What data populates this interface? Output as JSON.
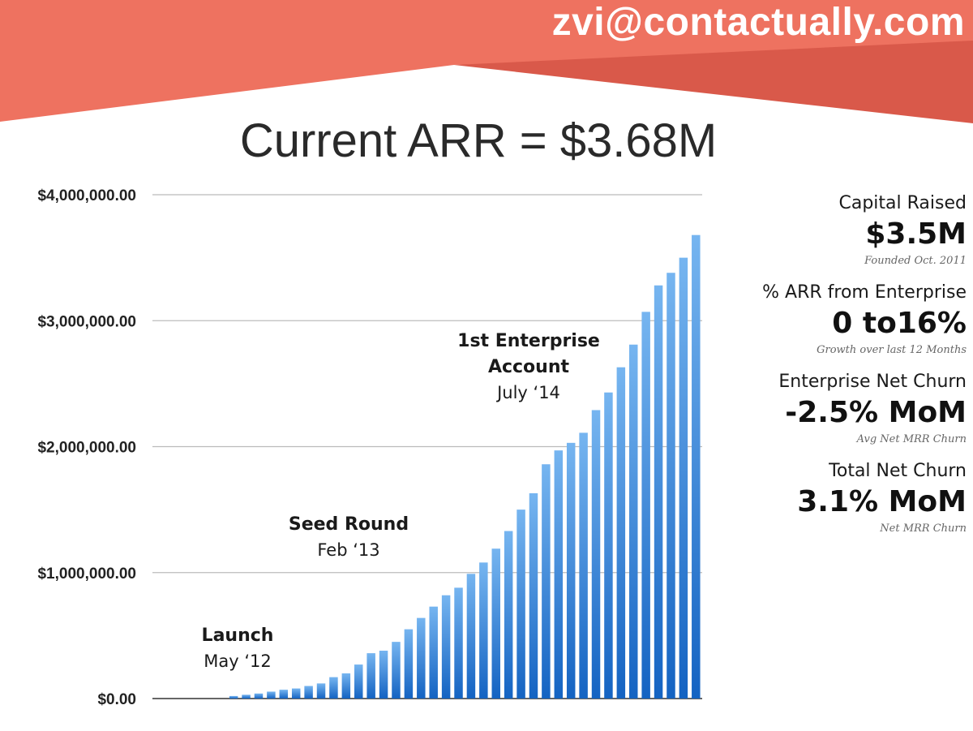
{
  "header": {
    "email": "zvi@contactually.com",
    "title": "Current ARR = $3.68M",
    "colors": {
      "banner_light": "#ee7260",
      "banner_dark": "#d9594a",
      "bar_top": "#76b5f0",
      "bar_bottom": "#1463c2"
    }
  },
  "chart_data": {
    "type": "bar",
    "title": "Current ARR = $3.68M",
    "ylim": [
      0,
      4000000
    ],
    "y_ticks": [
      {
        "value": 4000000,
        "label": "$4,000,000.00"
      },
      {
        "value": 3000000,
        "label": "$3,000,000.00"
      },
      {
        "value": 2000000,
        "label": "$2,000,000.00"
      },
      {
        "value": 1000000,
        "label": "$1,000,000.00"
      },
      {
        "value": 0,
        "label": "$0.00"
      }
    ],
    "grid": true,
    "legend": "none",
    "values": [
      0,
      0,
      0,
      0,
      0,
      0,
      20000,
      30000,
      40000,
      55000,
      70000,
      80000,
      100000,
      120000,
      170000,
      200000,
      270000,
      360000,
      380000,
      450000,
      550000,
      640000,
      730000,
      820000,
      880000,
      990000,
      1080000,
      1190000,
      1330000,
      1500000,
      1630000,
      1860000,
      1970000,
      2030000,
      2110000,
      2290000,
      2430000,
      2630000,
      2810000,
      3070000,
      3280000,
      3380000,
      3500000,
      3680000
    ],
    "annotations": [
      {
        "bold": "Launch",
        "sub": "May ‘12",
        "bar_index": 5
      },
      {
        "bold": "Seed Round",
        "sub": "Feb ‘13",
        "bar_index": 15
      },
      {
        "bold": "1st Enterprise",
        "bold2": "Account",
        "sub": "July ‘14",
        "bar_index": 32
      }
    ]
  },
  "stats": [
    {
      "label": "Capital Raised",
      "value": "$3.5M",
      "note": "Founded Oct. 2011"
    },
    {
      "label": "% ARR from Enterprise",
      "value": "0 to16%",
      "note": "Growth over last 12 Months"
    },
    {
      "label": "Enterprise Net Churn",
      "value": "-2.5% MoM",
      "note": "Avg Net MRR Churn"
    },
    {
      "label": "Total Net Churn",
      "value": "3.1% MoM",
      "note": "Net MRR Churn"
    }
  ]
}
